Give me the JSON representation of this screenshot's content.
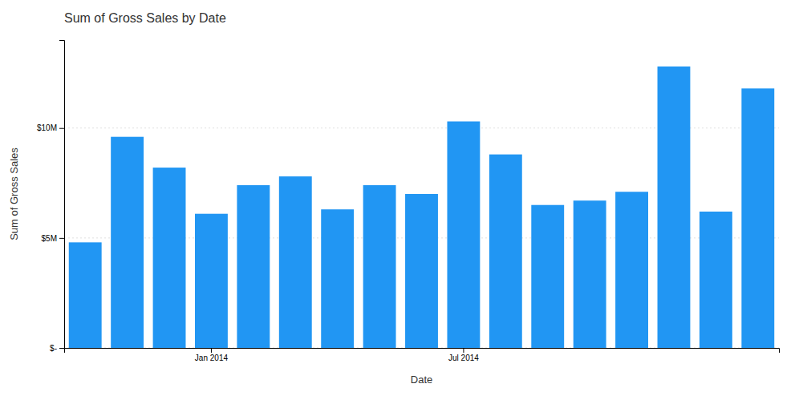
{
  "chart_data": {
    "type": "bar",
    "title": "Sum of Gross Sales by Date",
    "categories": [
      null,
      null,
      null,
      "Jan 2014",
      null,
      null,
      null,
      null,
      null,
      "Jul 2014",
      null,
      null,
      null,
      null,
      null,
      null,
      null
    ],
    "values": [
      4.8,
      9.6,
      8.2,
      6.1,
      7.4,
      7.8,
      6.3,
      7.4,
      7.0,
      10.3,
      8.8,
      6.5,
      6.7,
      7.1,
      12.8,
      6.2,
      11.8
    ],
    "color": "#2196F3",
    "xlabel": "Date",
    "ylabel": "Sum of Gross Sales",
    "ylim": [
      0,
      14
    ],
    "yticks": [
      {
        "value": 0,
        "label": "$-"
      },
      {
        "value": 5,
        "label": "$5M"
      },
      {
        "value": 10,
        "label": "$10M"
      }
    ],
    "grid": true
  }
}
